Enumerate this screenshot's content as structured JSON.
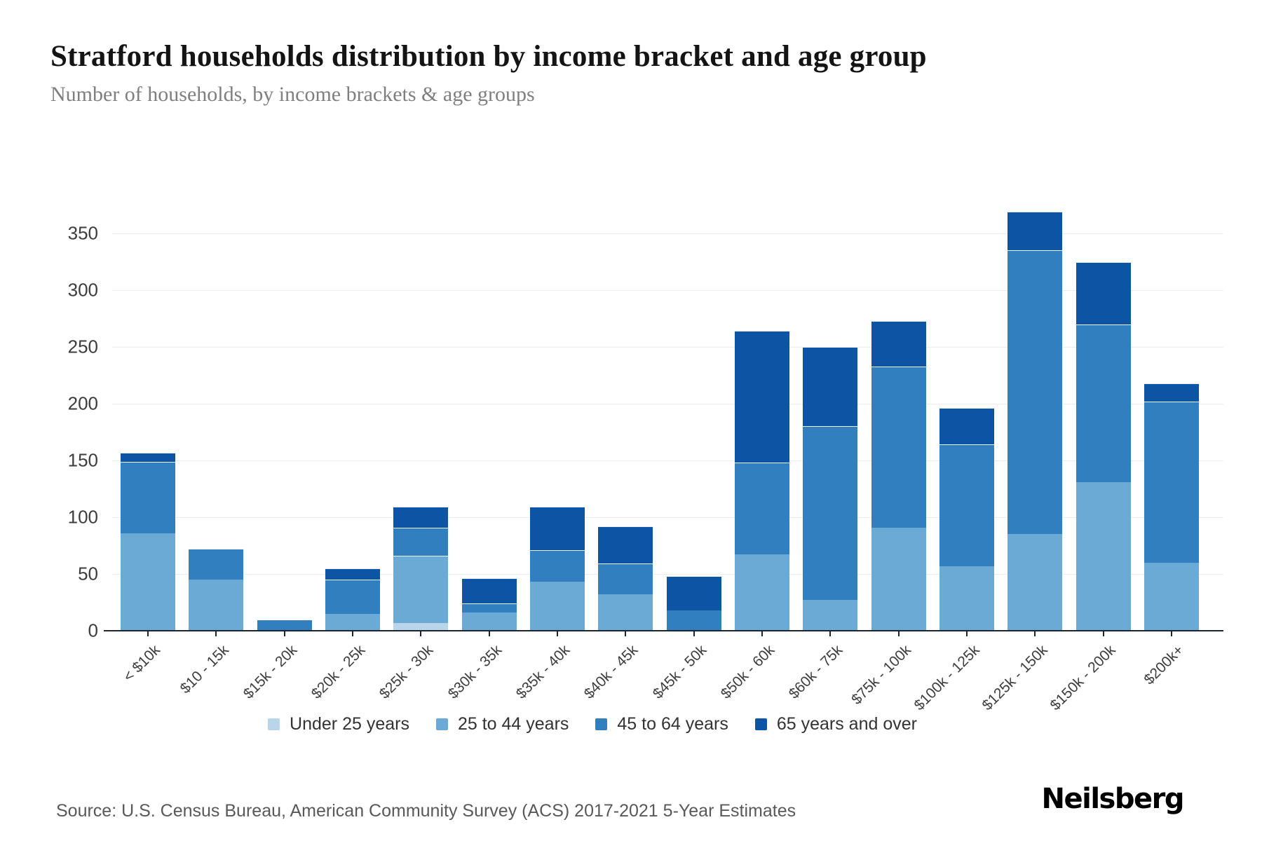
{
  "title": "Stratford households distribution by income bracket and age group",
  "subtitle": "Number of households, by income brackets & age groups",
  "source": "Source: U.S. Census Bureau, American Community Survey (ACS) 2017-2021 5-Year Estimates",
  "brand": "Neilsberg",
  "chart_data": {
    "type": "bar",
    "stacked": true,
    "categories": [
      "< $10k",
      "$10 - 15k",
      "$15k - 20k",
      "$20k - 25k",
      "$25k - 30k",
      "$30k - 35k",
      "$35k - 40k",
      "$40k - 45k",
      "$45k - 50k",
      "$50k - 60k",
      "$60k - 75k",
      "$75k - 100k",
      "$100k - 125k",
      "$125k - 150k",
      "$150k - 200k",
      "$200k+"
    ],
    "series": [
      {
        "name": "Under 25 years",
        "color": "#b9d5ea",
        "values": [
          0,
          0,
          0,
          0,
          7,
          0,
          0,
          0,
          0,
          0,
          0,
          0,
          0,
          0,
          0,
          0
        ]
      },
      {
        "name": "25 to 44 years",
        "color": "#6aaad4",
        "values": [
          86,
          45,
          0,
          15,
          59,
          16,
          43,
          32,
          0,
          67,
          27,
          91,
          57,
          85,
          131,
          60
        ]
      },
      {
        "name": "45 to 64 years",
        "color": "#327fc0",
        "values": [
          63,
          27,
          9,
          30,
          25,
          8,
          28,
          27,
          18,
          81,
          153,
          142,
          107,
          250,
          139,
          142
        ]
      },
      {
        "name": "65 years and over",
        "color": "#0d54a4",
        "values": [
          8,
          0,
          0,
          10,
          18,
          22,
          38,
          33,
          30,
          116,
          70,
          40,
          32,
          34,
          55,
          16
        ]
      }
    ],
    "totals": [
      157,
      72,
      9,
      55,
      109,
      46,
      109,
      92,
      48,
      264,
      250,
      273,
      196,
      369,
      325,
      218
    ],
    "title": "Stratford households distribution by income bracket and age group",
    "xlabel": "",
    "ylabel": "Number of households",
    "ylim": [
      0,
      350
    ],
    "ytick_step": 50,
    "grid": true,
    "legend_position": "bottom"
  }
}
